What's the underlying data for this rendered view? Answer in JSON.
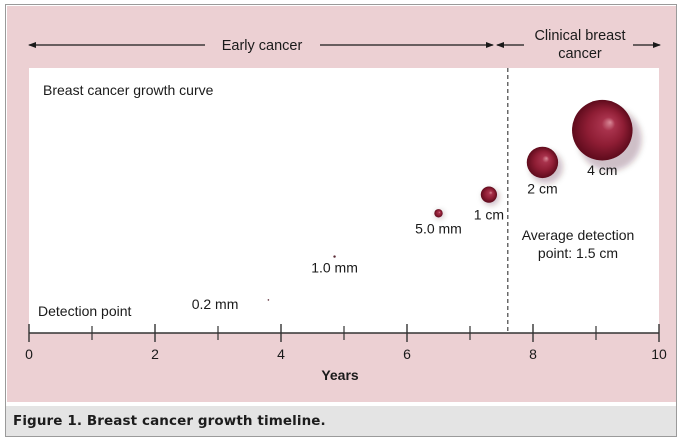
{
  "colors": {
    "band": "#ecd0d3",
    "axis": "#333333",
    "text": "#1a1a1a",
    "sphere_dark": "#5e0b1c",
    "sphere_mid": "#8e1d34",
    "sphere_light": "#d98a98",
    "caption_bg": "#e4e4e4"
  },
  "phases": {
    "early_label": "Early cancer",
    "clinical_line1": "Clinical breast",
    "clinical_line2": "cancer"
  },
  "chart_data": {
    "type": "scatter",
    "title": "Breast cancer growth curve",
    "xlabel": "Years",
    "ylabel": "",
    "xlim": [
      0,
      10
    ],
    "x_ticks": [
      0,
      2,
      4,
      6,
      8,
      10
    ],
    "x_tick_labels": [
      "0",
      "2",
      "4",
      "6",
      "8",
      "10"
    ],
    "x_minor_ticks": [
      1,
      3,
      5,
      7,
      9
    ],
    "phase_boundary_year": 7.6,
    "detection_point_label": "Detection point",
    "average_detection_line1": "Average detection",
    "average_detection_line2": "point: 1.5 cm",
    "points": [
      {
        "label": "0.2 mm",
        "year": 3.8,
        "diameter_mm": 0.2
      },
      {
        "label": "1.0 mm",
        "year": 4.85,
        "diameter_mm": 1.0
      },
      {
        "label": "5.0 mm",
        "year": 6.5,
        "diameter_mm": 5.0
      },
      {
        "label": "1 cm",
        "year": 7.3,
        "diameter_mm": 10
      },
      {
        "label": "2 cm",
        "year": 8.15,
        "diameter_mm": 20
      },
      {
        "label": "4 cm",
        "year": 9.1,
        "diameter_mm": 40
      }
    ]
  },
  "caption": "Figure 1. Breast cancer growth timeline."
}
